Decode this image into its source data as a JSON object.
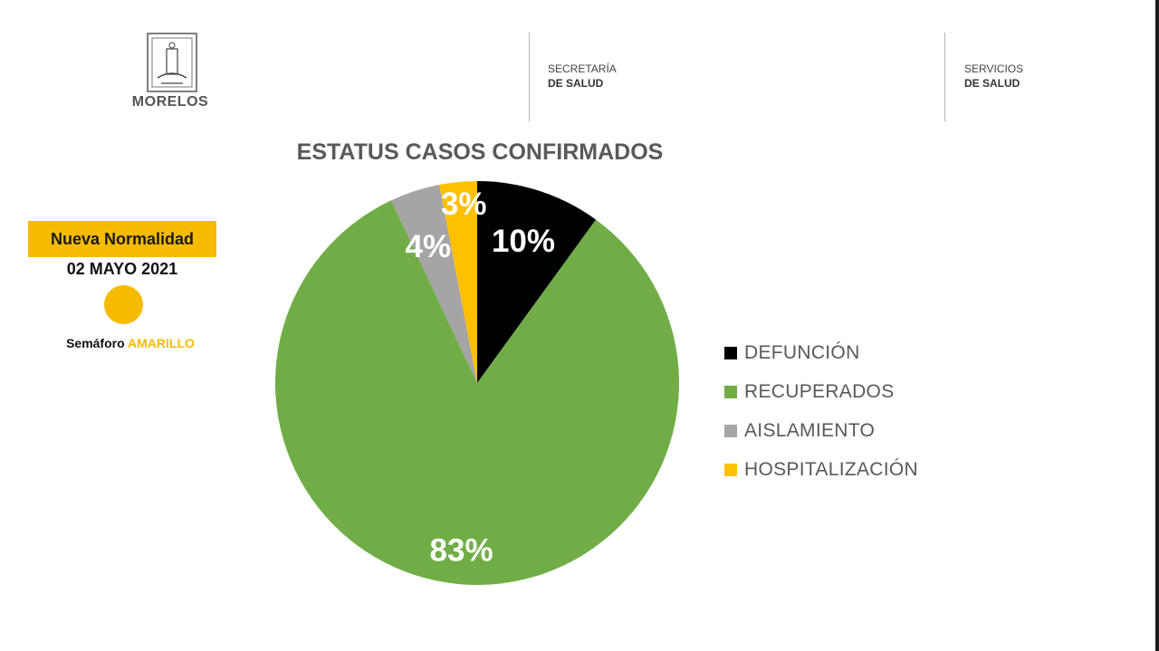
{
  "header": {
    "state_name": "MORELOS",
    "agency1_line1": "SECRETARÍA",
    "agency1_line2": "DE SALUD",
    "agency2_line1": "SERVICIOS",
    "agency2_line2": "DE SALUD",
    "seal_icon": "morelos-coat-of-arms-icon"
  },
  "status_panel": {
    "phase": "Nueva Normalidad",
    "date": "02 MAYO 2021",
    "semaforo_prefix": "Semáforo",
    "semaforo_color_word": "AMARILLO",
    "semaforo_color": "#f6bb00"
  },
  "chart_data": {
    "type": "pie",
    "title": "ESTATUS CASOS CONFIRMADOS",
    "legend_position": "right",
    "start_angle_deg": 0,
    "direction": "clockwise",
    "slices": [
      {
        "label": "DEFUNCIÓN",
        "value": 10,
        "display": "10%",
        "color": "#000000",
        "label_color": "#ffffff"
      },
      {
        "label": "RECUPERADOS",
        "value": 83,
        "display": "83%",
        "color": "#70ad47",
        "label_color": "#ffffff"
      },
      {
        "label": "AISLAMIENTO",
        "value": 4,
        "display": "4%",
        "color": "#a5a5a5",
        "label_color": "#ffffff"
      },
      {
        "label": "HOSPITALIZACIÓN",
        "value": 3,
        "display": "3%",
        "color": "#ffc000",
        "label_color": "#ffffff"
      }
    ]
  }
}
